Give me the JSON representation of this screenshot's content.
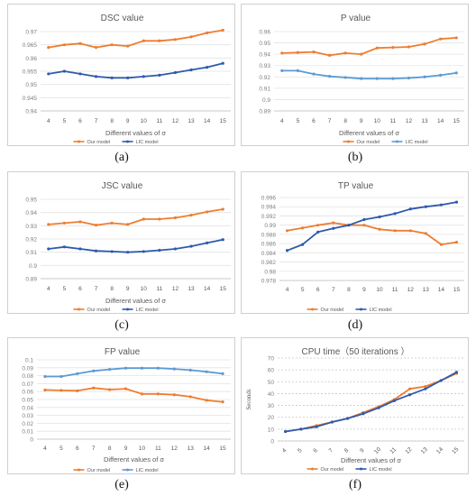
{
  "chart_data": [
    {
      "type": "line",
      "title": "DSC value",
      "xlabel": "Different values of σ",
      "ylabel": "",
      "caption": "(a)",
      "categories": [
        4,
        5,
        6,
        7,
        8,
        9,
        10,
        11,
        12,
        13,
        14,
        15
      ],
      "ylim": [
        0.94,
        0.97
      ],
      "yticks": [
        0.94,
        0.945,
        0.95,
        0.955,
        0.96,
        0.965,
        0.97
      ],
      "ytick_labels": [
        "0.94",
        "0.945",
        "0.95",
        "0.955",
        "0.96",
        "0.965",
        "0.97"
      ],
      "legend": "bottom",
      "series": [
        {
          "name": "Our model",
          "color": "#ED7D31",
          "values": [
            0.964,
            0.965,
            0.9655,
            0.964,
            0.965,
            0.9645,
            0.9665,
            0.9665,
            0.967,
            0.968,
            0.9695,
            0.9705
          ]
        },
        {
          "name": "LIC model",
          "color": "#2E5AAC",
          "values": [
            0.954,
            0.955,
            0.954,
            0.953,
            0.9525,
            0.9525,
            0.953,
            0.9535,
            0.9545,
            0.9555,
            0.9565,
            0.958
          ]
        }
      ]
    },
    {
      "type": "line",
      "title": "P value",
      "xlabel": "Different values of σ",
      "ylabel": "",
      "caption": "(b)",
      "categories": [
        4,
        5,
        6,
        7,
        8,
        9,
        10,
        11,
        12,
        13,
        14,
        15
      ],
      "ylim": [
        0.89,
        0.96
      ],
      "yticks": [
        0.89,
        0.9,
        0.91,
        0.92,
        0.93,
        0.94,
        0.95,
        0.96
      ],
      "ytick_labels": [
        "0.89",
        "0.9",
        "0.91",
        "0.92",
        "0.93",
        "0.94",
        "0.95",
        "0.96"
      ],
      "legend": "bottom-right",
      "series": [
        {
          "name": "Our model",
          "color": "#ED7D31",
          "values": [
            0.941,
            0.9415,
            0.942,
            0.939,
            0.941,
            0.94,
            0.9455,
            0.946,
            0.9465,
            0.949,
            0.9535,
            0.9545
          ]
        },
        {
          "name": "LIC model",
          "color": "#5B9BD5",
          "values": [
            0.9255,
            0.9255,
            0.9225,
            0.9205,
            0.9195,
            0.9185,
            0.9185,
            0.9185,
            0.919,
            0.92,
            0.9215,
            0.9235
          ]
        }
      ]
    },
    {
      "type": "line",
      "title": "JSC value",
      "xlabel": "Different values of σ",
      "ylabel": "",
      "caption": "(c)",
      "categories": [
        4,
        5,
        6,
        7,
        8,
        9,
        10,
        11,
        12,
        13,
        14,
        15
      ],
      "ylim": [
        0.89,
        0.95
      ],
      "yticks": [
        0.89,
        0.9,
        0.91,
        0.92,
        0.93,
        0.94,
        0.95
      ],
      "ytick_labels": [
        "0.89",
        "0.9",
        "0.91",
        "0.92",
        "0.93",
        "0.94",
        "0.95"
      ],
      "legend": "bottom",
      "series": [
        {
          "name": "Our model",
          "color": "#ED7D31",
          "values": [
            0.931,
            0.932,
            0.933,
            0.9305,
            0.932,
            0.931,
            0.935,
            0.935,
            0.936,
            0.938,
            0.9405,
            0.9425
          ]
        },
        {
          "name": "LIC model",
          "color": "#2E5AAC",
          "values": [
            0.9125,
            0.914,
            0.9125,
            0.911,
            0.9105,
            0.91,
            0.9105,
            0.9115,
            0.9125,
            0.9145,
            0.917,
            0.9195
          ]
        }
      ]
    },
    {
      "type": "line",
      "title": "TP value",
      "xlabel": "",
      "ylabel": "",
      "caption": "(d)",
      "categories": [
        4,
        5,
        6,
        7,
        8,
        9,
        10,
        11,
        12,
        13,
        14,
        15
      ],
      "ylim": [
        0.978,
        0.996
      ],
      "yticks": [
        0.978,
        0.98,
        0.982,
        0.984,
        0.986,
        0.988,
        0.99,
        0.992,
        0.994,
        0.996
      ],
      "ytick_labels": [
        "0.978",
        "0.98",
        "0.982",
        "0.984",
        "0.986",
        "0.988",
        "0.99",
        "0.992",
        "0.994",
        "0.996"
      ],
      "legend": "bottom",
      "series": [
        {
          "name": "Our model",
          "color": "#ED7D31",
          "values": [
            0.9888,
            0.9894,
            0.99,
            0.9905,
            0.99,
            0.99,
            0.9891,
            0.9888,
            0.9888,
            0.9882,
            0.9858,
            0.9863
          ]
        },
        {
          "name": "LIC model",
          "color": "#2E5AAC",
          "values": [
            0.9845,
            0.9858,
            0.9885,
            0.9893,
            0.99,
            0.9912,
            0.9918,
            0.9925,
            0.9935,
            0.994,
            0.9944,
            0.995
          ]
        }
      ]
    },
    {
      "type": "line",
      "title": "FP value",
      "xlabel": "Different values of σ",
      "ylabel": "",
      "caption": "(e)",
      "categories": [
        4,
        5,
        6,
        7,
        8,
        9,
        10,
        11,
        12,
        13,
        14,
        15
      ],
      "ylim": [
        0,
        0.1
      ],
      "yticks": [
        0,
        0.01,
        0.02,
        0.03,
        0.04,
        0.05,
        0.06,
        0.07,
        0.08,
        0.09,
        0.1
      ],
      "ytick_labels": [
        "0",
        "0.01",
        "0.02",
        "0.03",
        "0.04",
        "0.05",
        "0.06",
        "0.07",
        "0.08",
        "0.09",
        "0.1"
      ],
      "legend": "bottom",
      "series": [
        {
          "name": "Our model",
          "color": "#ED7D31",
          "values": [
            0.062,
            0.0615,
            0.061,
            0.0645,
            0.0625,
            0.0635,
            0.057,
            0.057,
            0.056,
            0.0535,
            0.049,
            0.047
          ]
        },
        {
          "name": "LIC model",
          "color": "#5B9BD5",
          "values": [
            0.079,
            0.079,
            0.0825,
            0.086,
            0.088,
            0.0895,
            0.0895,
            0.0895,
            0.0885,
            0.087,
            0.085,
            0.0825
          ]
        }
      ]
    },
    {
      "type": "line",
      "title": "CPU time（50 iterations ）",
      "xlabel": "Different values of σ",
      "ylabel": "Seconds",
      "caption": "(f)",
      "categories": [
        4,
        5,
        6,
        7,
        8,
        9,
        10,
        11,
        12,
        13,
        14,
        15
      ],
      "ylim": [
        0,
        70
      ],
      "yticks": [
        0,
        10,
        20,
        30,
        40,
        50,
        60,
        70
      ],
      "ytick_labels": [
        "0",
        "10",
        "20",
        "30",
        "40",
        "50",
        "60",
        "70"
      ],
      "legend": "bottom",
      "series": [
        {
          "name": "Our model",
          "color": "#ED7D31",
          "values": [
            8,
            10,
            13,
            16,
            19,
            24,
            29,
            35,
            44,
            46,
            51,
            57
          ]
        },
        {
          "name": "LIC model",
          "color": "#2E5AAC",
          "values": [
            8,
            10,
            12,
            16,
            19,
            23,
            28,
            34,
            39,
            44,
            51,
            58
          ]
        }
      ]
    }
  ]
}
